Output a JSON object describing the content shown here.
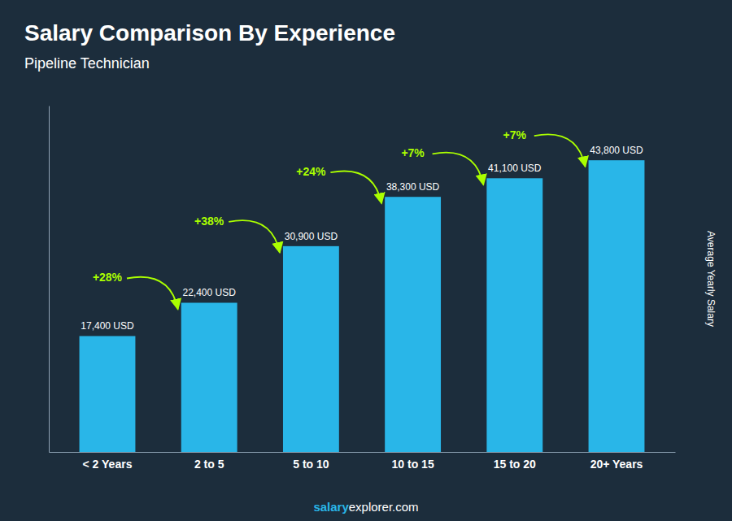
{
  "chart_data": {
    "type": "bar",
    "title": "Salary Comparison By Experience",
    "subtitle": "Pipeline Technician",
    "ylabel": "Average Yearly Salary",
    "categories": [
      "< 2 Years",
      "2 to 5",
      "5 to 10",
      "10 to 15",
      "15 to 20",
      "20+ Years"
    ],
    "values": [
      17400,
      22400,
      30900,
      38300,
      41100,
      43800
    ],
    "value_labels": [
      "17,400 USD",
      "22,400 USD",
      "30,900 USD",
      "38,300 USD",
      "41,100 USD",
      "43,800 USD"
    ],
    "data_labels": true,
    "color": "#29b6e8",
    "ylim": [
      0,
      52000
    ],
    "tick_labels": "x",
    "annotations": [
      {
        "text": "+28%",
        "color": "#aaff00"
      },
      {
        "text": "+38%",
        "color": "#aaff00"
      },
      {
        "text": "+24%",
        "color": "#aaff00"
      },
      {
        "text": "+7%",
        "color": "#aaff00"
      },
      {
        "text": "+7%",
        "color": "#aaff00"
      }
    ],
    "footer": [
      "salary",
      "explorer.com"
    ]
  }
}
